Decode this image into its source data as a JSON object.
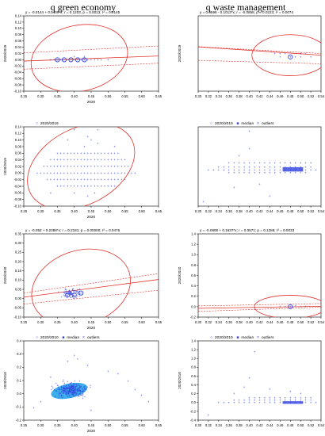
{
  "column_titles": {
    "left": "q green economy",
    "right": "q waste management"
  },
  "colors": {
    "ellipse": "#e0302a",
    "points": "#2e3fe0",
    "fill": "#1aa0e8",
    "axis": "#000000"
  },
  "chart_data": [
    {
      "id": "A1",
      "type": "scatter",
      "title": "",
      "regression_text": "y = -0.0144 + 0.0409*x; r = 0.1203, p = 0.0013; r² = 0.0145",
      "xlabel": "2020",
      "ylabel": "2020/2019",
      "xlim": [
        0.25,
        0.65
      ],
      "ylim": [
        -0.1,
        0.14
      ],
      "xticks": [
        "0.25",
        "0.30",
        "0.35",
        "0.40",
        "0.45",
        "0.50",
        "0.55",
        "0.60",
        "0.65"
      ],
      "yticks": [
        "-0.10",
        "-0.08",
        "-0.06",
        "-0.04",
        "-0.02",
        "0.00",
        "0.02",
        "0.04",
        "0.06",
        "0.08",
        "0.10",
        "0.12",
        "0.14"
      ],
      "ellipse": {
        "cx": 0.415,
        "cy": 0.005,
        "rx": 0.145,
        "ry": 0.105,
        "rot": -12
      },
      "regression": {
        "a": -0.0144,
        "b": 0.0409
      },
      "band": [
        {
          "x": [
            0.25,
            0.65
          ],
          "y": [
            0.022,
            0.044
          ]
        },
        {
          "x": [
            0.25,
            0.65
          ],
          "y": [
            -0.03,
            -0.011
          ]
        }
      ],
      "points": [
        [
          0.33,
          0.0
        ],
        [
          0.34,
          0.0
        ],
        [
          0.35,
          0.0
        ],
        [
          0.36,
          0.0
        ],
        [
          0.37,
          0.0
        ],
        [
          0.38,
          0.0
        ],
        [
          0.39,
          0.0
        ],
        [
          0.4,
          0.0
        ],
        [
          0.41,
          0.0
        ],
        [
          0.42,
          0.0
        ],
        [
          0.43,
          0.0
        ],
        [
          0.44,
          0.0
        ],
        [
          0.45,
          0.0
        ],
        [
          0.4,
          0.01
        ],
        [
          0.43,
          0.01
        ],
        [
          0.46,
          0.0
        ],
        [
          0.47,
          0.0
        ],
        [
          0.48,
          0.0
        ],
        [
          0.5,
          0.0
        ]
      ],
      "circles": [
        [
          0.35,
          0.0
        ],
        [
          0.37,
          0.0
        ],
        [
          0.39,
          0.0
        ],
        [
          0.41,
          0.0
        ],
        [
          0.43,
          0.0
        ]
      ]
    },
    {
      "id": "B1",
      "type": "scatter",
      "title": "",
      "regression_text": "y = 0.0598 - 0.1013*x; r = -0.0858, p = 0.0223; r² = 0.0074",
      "xlabel": "",
      "ylabel": "2020/2019",
      "xlim": [
        0.3,
        0.54
      ],
      "ylim": [
        -0.1,
        0.12
      ],
      "xticks": [
        "0.30",
        "0.32",
        "0.34",
        "0.36",
        "0.38",
        "0.40",
        "0.42",
        "0.44",
        "0.46",
        "0.48",
        "0.50",
        "0.52",
        "0.54"
      ],
      "yticks": [],
      "ellipse": {
        "cx": 0.48,
        "cy": 0.005,
        "rx": 0.075,
        "ry": 0.06,
        "rot": 0
      },
      "regression": {
        "a": 0.0598,
        "b": -0.1013
      },
      "band": [
        {
          "x": [
            0.3,
            0.54
          ],
          "y": [
            0.03,
            0.01
          ]
        },
        {
          "x": [
            0.3,
            0.54
          ],
          "y": [
            -0.01,
            -0.02
          ]
        }
      ],
      "points": [
        [
          0.45,
          0.01
        ],
        [
          0.46,
          0.01
        ],
        [
          0.47,
          0.01
        ],
        [
          0.48,
          0.0
        ],
        [
          0.49,
          0.0
        ],
        [
          0.5,
          0.0
        ],
        [
          0.51,
          0.01
        ],
        [
          0.52,
          0.0
        ],
        [
          0.46,
          0.0
        ],
        [
          0.5,
          0.01
        ]
      ],
      "circles": [
        [
          0.48,
          0.0
        ]
      ]
    },
    {
      "id": "A2",
      "type": "scatter",
      "title": "",
      "legend": [
        "2020/2019"
      ],
      "xlabel": "2020",
      "ylabel": "2020/2019",
      "xlim": [
        0.25,
        0.65
      ],
      "ylim": [
        -0.1,
        0.14
      ],
      "xticks": [
        "0.25",
        "0.30",
        "0.35",
        "0.40",
        "0.45",
        "0.50",
        "0.55",
        "0.60",
        "0.65"
      ],
      "yticks": [
        "-0.10",
        "-0.08",
        "-0.06",
        "-0.04",
        "-0.02",
        "0.00",
        "0.02",
        "0.04",
        "0.06",
        "0.08",
        "0.10",
        "0.12",
        "0.14"
      ],
      "ellipse": {
        "cx": 0.42,
        "cy": 0.02,
        "rx": 0.17,
        "ry": 0.115,
        "rot": -28
      },
      "rows": [
        0.06,
        0.04,
        0.02,
        0.0,
        -0.02,
        -0.04
      ],
      "row_range": [
        [
          0.35,
          0.53
        ],
        [
          0.33,
          0.55
        ],
        [
          0.31,
          0.56
        ],
        [
          0.29,
          0.58
        ],
        [
          0.32,
          0.55
        ],
        [
          0.35,
          0.52
        ]
      ],
      "points": [
        [
          0.4,
          0.13
        ],
        [
          0.47,
          0.13
        ],
        [
          0.44,
          0.11
        ],
        [
          0.45,
          0.1
        ],
        [
          0.38,
          0.1
        ],
        [
          0.43,
          0.08
        ],
        [
          0.47,
          0.09
        ],
        [
          0.4,
          -0.06
        ],
        [
          0.44,
          -0.07
        ],
        [
          0.46,
          -0.06
        ],
        [
          0.33,
          -0.06
        ],
        [
          0.52,
          0.08
        ]
      ]
    },
    {
      "id": "B2",
      "type": "scatter",
      "title": "",
      "legend": [
        "2020/2019",
        "median",
        "outliers"
      ],
      "xlabel": "",
      "ylabel": "",
      "xlim": [
        0.3,
        0.54
      ],
      "ylim": [
        -0.25,
        0.3
      ],
      "xticks": [
        "0.30",
        "0.32",
        "0.34",
        "0.36",
        "0.38",
        "0.40",
        "0.42",
        "0.44",
        "0.46",
        "0.48",
        "0.50",
        "0.52",
        "0.54"
      ],
      "yticks": [],
      "rows": [
        0.05,
        0.02,
        0.0,
        -0.02
      ],
      "row_range": [
        [
          0.36,
          0.52
        ],
        [
          0.34,
          0.52
        ],
        [
          0.32,
          0.53
        ],
        [
          0.36,
          0.51
        ]
      ],
      "points": [
        [
          0.31,
          -0.22
        ],
        [
          0.4,
          0.27
        ],
        [
          0.4,
          0.15
        ],
        [
          0.38,
          0.1
        ],
        [
          0.44,
          -0.18
        ],
        [
          0.42,
          -0.1
        ],
        [
          0.37,
          -0.12
        ]
      ],
      "median_box": {
        "x": [
          0.465,
          0.505
        ],
        "y": [
          -0.01,
          0.02
        ]
      }
    },
    {
      "id": "A3",
      "type": "scatter",
      "title": "",
      "regression_text": "y = -0.052 + 0.2388*x; r = 0.2181; p = 0.00000; r² = 0.0476",
      "xlabel": "2020",
      "ylabel": "2020/2010",
      "xlim": [
        0.25,
        0.65
      ],
      "ylim": [
        -0.1,
        0.35
      ],
      "xticks": [
        "0.25",
        "0.30",
        "0.35",
        "0.40",
        "0.45",
        "0.50",
        "0.55",
        "0.60",
        "0.65"
      ],
      "yticks": [
        "-0.10",
        "-0.05",
        "0.00",
        "0.05",
        "0.10",
        "0.15",
        "0.20",
        "0.25",
        "0.30",
        "0.35"
      ],
      "ellipse": {
        "cx": 0.42,
        "cy": 0.06,
        "rx": 0.15,
        "ry": 0.2,
        "rot": -18
      },
      "regression": {
        "a": -0.052,
        "b": 0.2388
      },
      "band": [
        {
          "x": [
            0.25,
            0.65
          ],
          "y": [
            0.03,
            0.135
          ]
        },
        {
          "x": [
            0.25,
            0.65
          ],
          "y": [
            -0.03,
            0.045
          ]
        }
      ],
      "cluster": {
        "cx": 0.395,
        "cy": 0.03,
        "sx": 0.03,
        "sy": 0.025,
        "n": 90,
        "seed": 7
      },
      "circles": [
        [
          0.38,
          0.02
        ],
        [
          0.4,
          0.02
        ],
        [
          0.42,
          0.03
        ]
      ]
    },
    {
      "id": "B3",
      "type": "scatter",
      "title": "",
      "regression_text": "y = -0.0806 + 0.1637*x; r = 0.0571; p = 0.1288; r² = 0.0033",
      "xlabel": "",
      "ylabel": "2020/2010",
      "xlim": [
        0.3,
        0.54
      ],
      "ylim": [
        -0.2,
        1.4
      ],
      "xticks": [
        "0.30",
        "0.32",
        "0.34",
        "0.36",
        "0.38",
        "0.40",
        "0.42",
        "0.44",
        "0.46",
        "0.48",
        "0.50",
        "0.52",
        "0.54"
      ],
      "yticks": [
        "-0.2",
        "0.0",
        "0.2",
        "0.4",
        "0.6",
        "0.8",
        "1.0",
        "1.2",
        "1.4"
      ],
      "ellipse": {
        "cx": 0.48,
        "cy": 0.0,
        "rx": 0.07,
        "ry": 0.22,
        "rot": 0
      },
      "regression": {
        "a": -0.0806,
        "b": 0.1637
      },
      "band": [
        {
          "x": [
            0.3,
            0.54
          ],
          "y": [
            0.015,
            0.06
          ]
        },
        {
          "x": [
            0.3,
            0.54
          ],
          "y": [
            -0.09,
            -0.01
          ]
        }
      ],
      "points": [
        [
          0.46,
          0.0
        ],
        [
          0.47,
          0.0
        ],
        [
          0.48,
          0.0
        ],
        [
          0.49,
          0.01
        ],
        [
          0.5,
          0.0
        ],
        [
          0.51,
          0.0
        ]
      ],
      "circles": [
        [
          0.48,
          0.0
        ]
      ]
    },
    {
      "id": "A4",
      "type": "scatter",
      "title": "",
      "legend": [
        "2020/2010",
        "median",
        "outliers"
      ],
      "xlabel": "2020",
      "ylabel": "2020/2010",
      "xlim": [
        0.25,
        0.65
      ],
      "ylim": [
        -0.2,
        0.45
      ],
      "xticks": [
        "0.25",
        "0.30",
        "0.35",
        "0.40",
        "0.45",
        "0.50",
        "0.55",
        "0.60",
        "0.65"
      ],
      "yticks": [
        "-0.2",
        "-0.1",
        "0.0",
        "0.1",
        "0.2",
        "0.3",
        "0.4"
      ],
      "cluster": {
        "cx": 0.39,
        "cy": 0.05,
        "sx": 0.045,
        "sy": 0.055,
        "n": 320,
        "seed": 3
      },
      "blob": {
        "cx": 0.385,
        "cy": 0.04,
        "rx": 0.055,
        "ry": 0.06
      },
      "points": [
        [
          0.4,
          0.33
        ],
        [
          0.41,
          0.3
        ],
        [
          0.38,
          0.28
        ],
        [
          0.44,
          0.25
        ],
        [
          0.5,
          0.2
        ],
        [
          0.53,
          0.18
        ],
        [
          0.56,
          0.12
        ],
        [
          0.58,
          0.05
        ],
        [
          0.6,
          0.0
        ],
        [
          0.62,
          -0.05
        ],
        [
          0.28,
          -0.1
        ],
        [
          0.3,
          -0.05
        ],
        [
          0.33,
          0.15
        ],
        [
          0.45,
          -0.12
        ]
      ]
    },
    {
      "id": "B4",
      "type": "scatter",
      "title": "",
      "legend": [
        "2020/2010",
        "median",
        "outliers"
      ],
      "xlabel": "",
      "ylabel": "2020/2010",
      "xlim": [
        0.3,
        0.54
      ],
      "ylim": [
        -0.4,
        1.4
      ],
      "xticks": [
        "0.30",
        "0.32",
        "0.34",
        "0.36",
        "0.38",
        "0.40",
        "0.42",
        "0.44",
        "0.46",
        "0.48",
        "0.50",
        "0.52",
        "0.54"
      ],
      "yticks": [
        "-0.4",
        "-0.2",
        "0.0",
        "0.2",
        "0.4",
        "0.6",
        "0.8",
        "1.0",
        "1.2",
        "1.4"
      ],
      "rows": [
        0.1,
        0.05,
        0.0
      ],
      "row_range": [
        [
          0.4,
          0.52
        ],
        [
          0.37,
          0.52
        ],
        [
          0.34,
          0.53
        ]
      ],
      "points": [
        [
          0.32,
          -0.28
        ],
        [
          0.41,
          1.15
        ],
        [
          0.4,
          0.55
        ],
        [
          0.39,
          0.35
        ],
        [
          0.37,
          0.2
        ],
        [
          0.44,
          0.3
        ],
        [
          0.48,
          0.25
        ],
        [
          0.5,
          0.2
        ]
      ],
      "median_box": {
        "x": [
          0.465,
          0.505
        ],
        "y": [
          -0.03,
          0.03
        ]
      }
    }
  ]
}
